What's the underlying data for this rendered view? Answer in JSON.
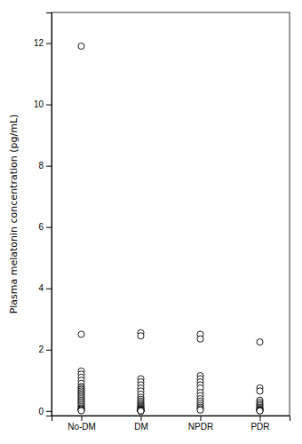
{
  "chart_data": {
    "type": "strip",
    "ylabel": "Plasma melatonin concentration (pg/mL)",
    "categories": [
      "No-DM",
      "DM",
      "NPDR",
      "PDR"
    ],
    "values": [
      [
        11.9,
        2.5,
        1.3,
        1.2,
        1.1,
        1.0,
        0.9,
        0.8,
        0.75,
        0.7,
        0.65,
        0.6,
        0.55,
        0.5,
        0.45,
        0.4,
        0.35,
        0.3,
        0.25,
        0.2,
        0.15,
        0.1,
        0.07,
        0.04,
        0.02,
        0.01
      ],
      [
        2.55,
        2.45,
        1.05,
        0.95,
        0.85,
        0.75,
        0.65,
        0.55,
        0.45,
        0.38,
        0.32,
        0.27,
        0.22,
        0.18,
        0.14,
        0.11,
        0.08,
        0.06,
        0.04,
        0.03,
        0.02,
        0.015,
        0.01,
        0.007,
        0.004,
        0.002,
        0.001,
        0.0008,
        0.0005,
        0.0003
      ],
      [
        2.5,
        2.35,
        1.15,
        1.05,
        0.95,
        0.85,
        0.75,
        0.6,
        0.5,
        0.4,
        0.32,
        0.25,
        0.18,
        0.12,
        0.07,
        0.03
      ],
      [
        2.25,
        0.75,
        0.65,
        0.35,
        0.28,
        0.22,
        0.17,
        0.12,
        0.08,
        0.05,
        0.03,
        0.015,
        0.008,
        0.003
      ]
    ],
    "color": "black",
    "marker": "circle",
    "ylim": [
      -0.15,
      13
    ],
    "yticks": [
      0,
      2,
      4,
      6,
      8,
      10,
      12
    ],
    "grid": false
  }
}
